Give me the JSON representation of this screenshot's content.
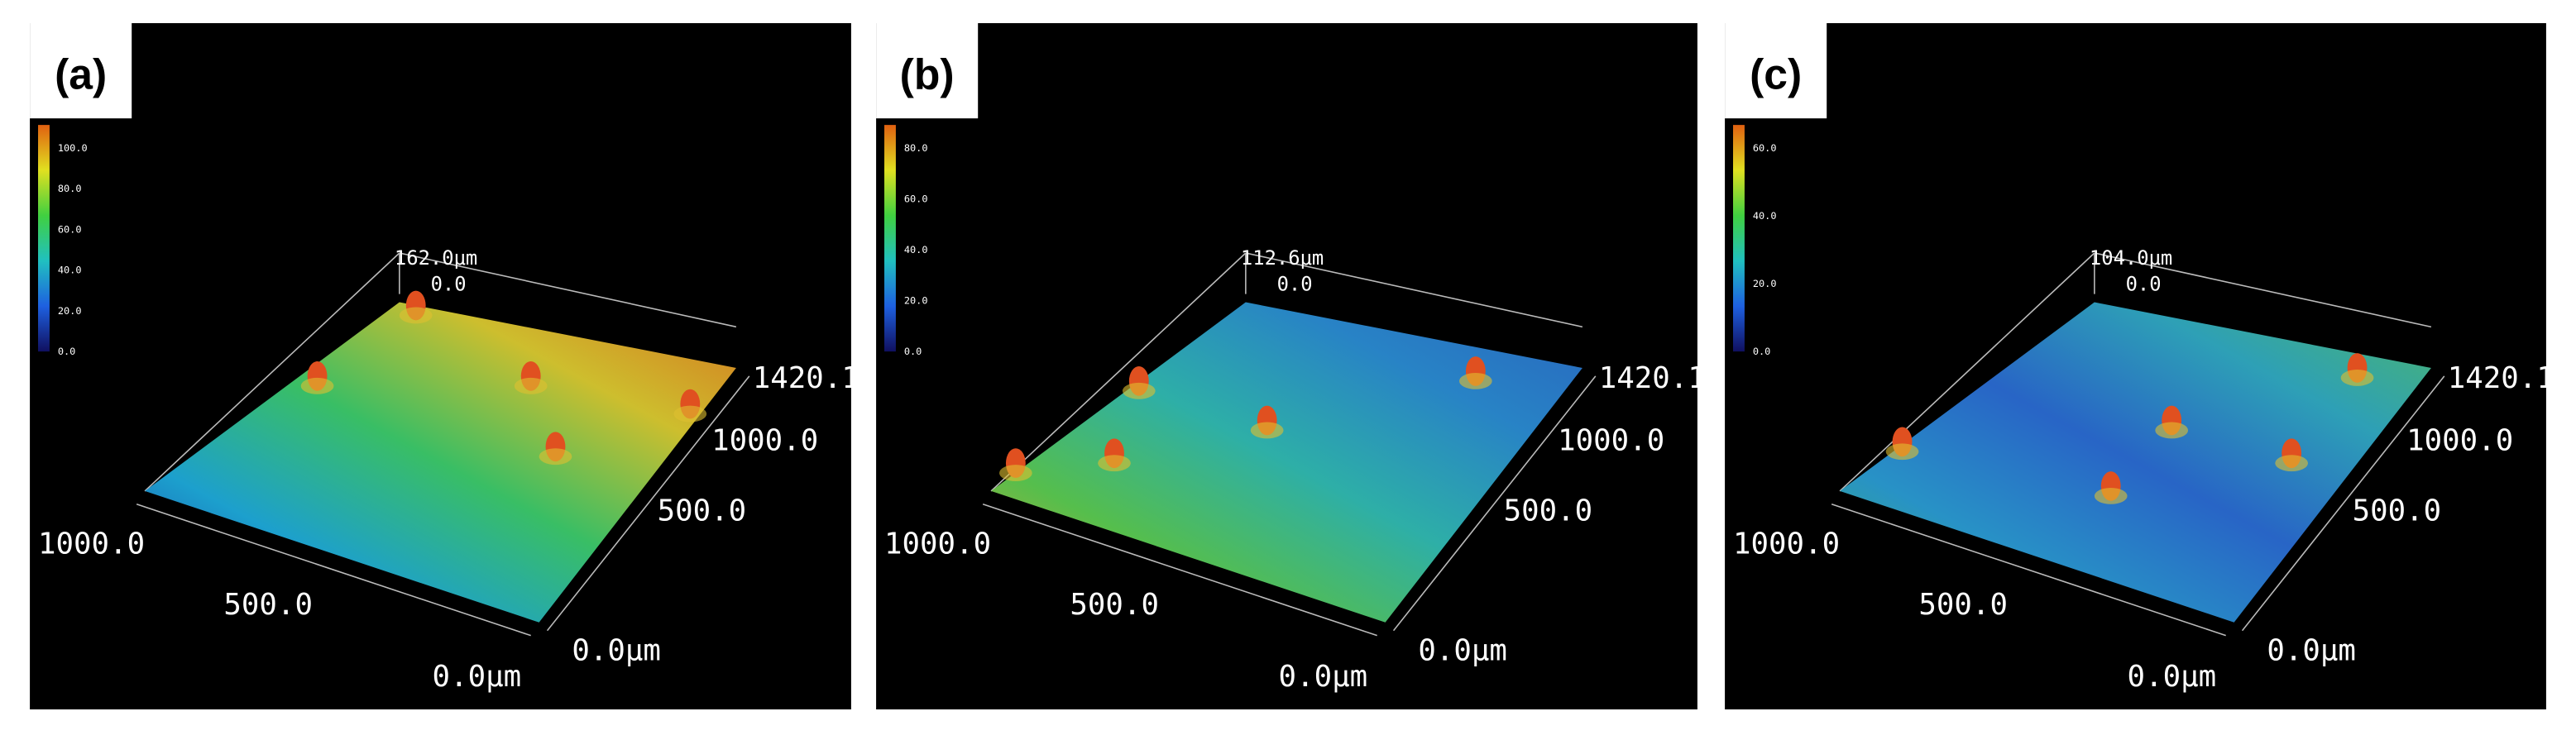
{
  "panels": [
    {
      "label": "(a)",
      "z_max": "162.0μm",
      "z_zero": "0.0",
      "y_axis": [
        "1420.1",
        "1000.0",
        "500.0",
        "0.0μm"
      ],
      "x_axis": [
        "1000.0",
        "500.0",
        "0.0μm"
      ],
      "colorbar": [
        "100.0",
        "80.0",
        "60.0",
        "40.0",
        "20.0",
        "0.0"
      ]
    },
    {
      "label": "(b)",
      "z_max": "112.6μm",
      "z_zero": "0.0",
      "y_axis": [
        "1420.1",
        "1000.0",
        "500.0",
        "0.0μm"
      ],
      "x_axis": [
        "1000.0",
        "500.0",
        "0.0μm"
      ],
      "colorbar": [
        "80.0",
        "60.0",
        "40.0",
        "20.0",
        "0.0"
      ]
    },
    {
      "label": "(c)",
      "z_max": "104.0μm",
      "z_zero": "0.0",
      "y_axis": [
        "1420.1",
        "1000.0",
        "500.0",
        "0.0μm"
      ],
      "x_axis": [
        "1000.0",
        "500.0",
        "0.0μm"
      ],
      "colorbar": [
        "60.0",
        "40.0",
        "20.0",
        "0.0"
      ]
    }
  ]
}
